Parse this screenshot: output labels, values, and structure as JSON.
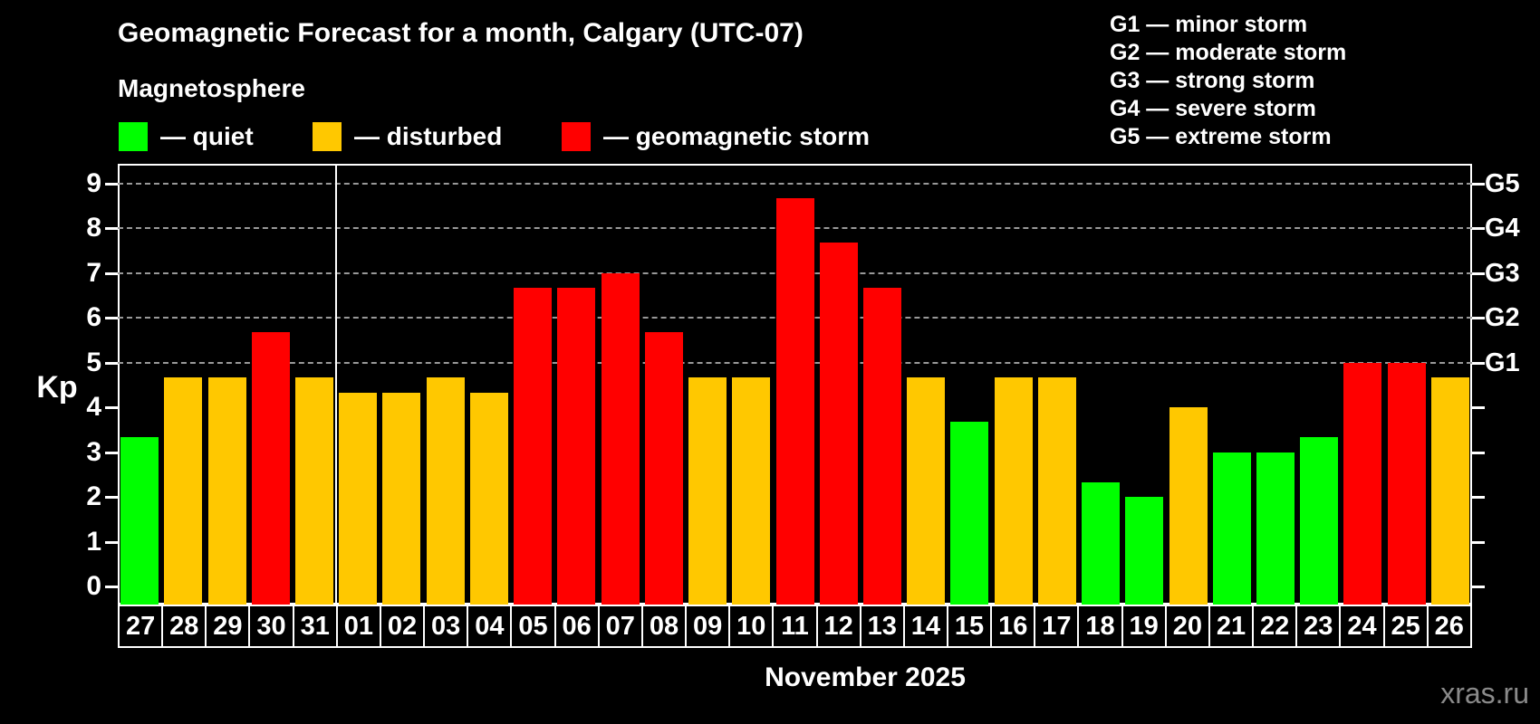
{
  "title": "Geomagnetic Forecast for a month, Calgary (UTC-07)",
  "subtitle": "Magnetosphere",
  "legend": {
    "items": [
      {
        "state": "quiet",
        "label": "— quiet"
      },
      {
        "state": "disturbed",
        "label": "— disturbed"
      },
      {
        "state": "storm",
        "label": "— geomagnetic storm"
      }
    ]
  },
  "g_legend": {
    "items": [
      "G1 — minor storm",
      "G2 — moderate storm",
      "G3 — strong storm",
      "G4 — severe storm",
      "G5 — extreme storm"
    ]
  },
  "watermark": "xras.ru",
  "colors": {
    "background": "#000000",
    "text": "#ffffff",
    "quiet": "#00ff00",
    "disturbed": "#ffc800",
    "storm": "#ff0000",
    "grid": "#999999",
    "watermark": "#8a8a8a"
  },
  "chart_data": {
    "type": "bar",
    "title": "Geomagnetic Forecast for a month, Calgary (UTC-07)",
    "ylabel": "Kp",
    "x_axis_label": "November 2025",
    "ylim": [
      0,
      9
    ],
    "yticks": [
      0,
      1,
      2,
      3,
      4,
      5,
      6,
      7,
      8,
      9
    ],
    "grid_levels": [
      5,
      6,
      7,
      8,
      9
    ],
    "grid": "dashed horizontal at G-storm levels only",
    "right_axis": [
      {
        "label": "G1",
        "kp": 5
      },
      {
        "label": "G2",
        "kp": 6
      },
      {
        "label": "G3",
        "kp": 7
      },
      {
        "label": "G4",
        "kp": 8
      },
      {
        "label": "G5",
        "kp": 9
      }
    ],
    "month_separator_after_index": 4,
    "days": [
      {
        "day": "27",
        "kp": 3.33,
        "state": "quiet"
      },
      {
        "day": "28",
        "kp": 4.67,
        "state": "disturbed"
      },
      {
        "day": "29",
        "kp": 4.67,
        "state": "disturbed"
      },
      {
        "day": "30",
        "kp": 5.67,
        "state": "storm"
      },
      {
        "day": "31",
        "kp": 4.67,
        "state": "disturbed"
      },
      {
        "day": "01",
        "kp": 4.33,
        "state": "disturbed"
      },
      {
        "day": "02",
        "kp": 4.33,
        "state": "disturbed"
      },
      {
        "day": "03",
        "kp": 4.67,
        "state": "disturbed"
      },
      {
        "day": "04",
        "kp": 4.33,
        "state": "disturbed"
      },
      {
        "day": "05",
        "kp": 6.67,
        "state": "storm"
      },
      {
        "day": "06",
        "kp": 6.67,
        "state": "storm"
      },
      {
        "day": "07",
        "kp": 7.0,
        "state": "storm"
      },
      {
        "day": "08",
        "kp": 5.67,
        "state": "storm"
      },
      {
        "day": "09",
        "kp": 4.67,
        "state": "disturbed"
      },
      {
        "day": "10",
        "kp": 4.67,
        "state": "disturbed"
      },
      {
        "day": "11",
        "kp": 8.67,
        "state": "storm"
      },
      {
        "day": "12",
        "kp": 7.67,
        "state": "storm"
      },
      {
        "day": "13",
        "kp": 6.67,
        "state": "storm"
      },
      {
        "day": "14",
        "kp": 4.67,
        "state": "disturbed"
      },
      {
        "day": "15",
        "kp": 3.67,
        "state": "quiet"
      },
      {
        "day": "16",
        "kp": 4.67,
        "state": "disturbed"
      },
      {
        "day": "17",
        "kp": 4.67,
        "state": "disturbed"
      },
      {
        "day": "18",
        "kp": 2.33,
        "state": "quiet"
      },
      {
        "day": "19",
        "kp": 2.0,
        "state": "quiet"
      },
      {
        "day": "20",
        "kp": 4.0,
        "state": "disturbed"
      },
      {
        "day": "21",
        "kp": 3.0,
        "state": "quiet"
      },
      {
        "day": "22",
        "kp": 3.0,
        "state": "quiet"
      },
      {
        "day": "23",
        "kp": 3.33,
        "state": "quiet"
      },
      {
        "day": "24",
        "kp": 5.0,
        "state": "storm"
      },
      {
        "day": "25",
        "kp": 5.0,
        "state": "storm"
      },
      {
        "day": "26",
        "kp": 4.67,
        "state": "disturbed"
      }
    ]
  }
}
